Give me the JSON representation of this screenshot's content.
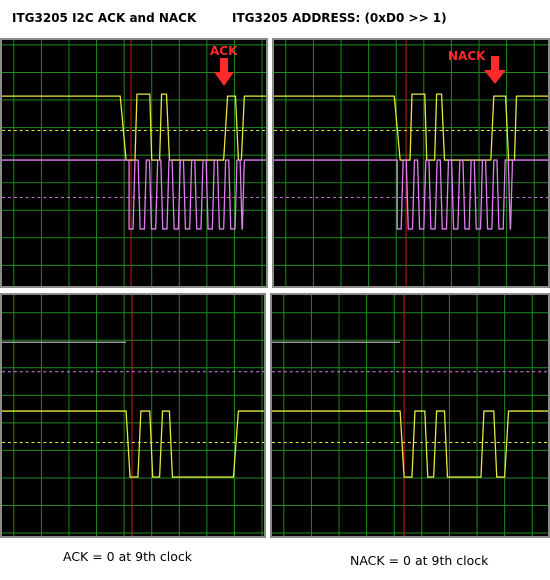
{
  "header": {
    "left_title": "ITG3205 I2C ACK and NACK",
    "right_title": "ITG3205 ADDRESS: (0xD0 >> 1)"
  },
  "panels": {
    "top_left": {
      "marker_label": "ACK"
    },
    "top_right": {
      "marker_label": "NACK"
    }
  },
  "captions": {
    "ack": "ACK = 0 at 9th clock",
    "nack": "NACK = 0 at 9th clock"
  },
  "colors": {
    "background": "#000000",
    "grid": "#1f8a1f",
    "trigger_line": "#d01818",
    "sda_trace": "#e8e840",
    "scl_trace": "#e080f0",
    "idle_trace": "#b0b0b0",
    "marker": "#ff2a2a"
  }
}
